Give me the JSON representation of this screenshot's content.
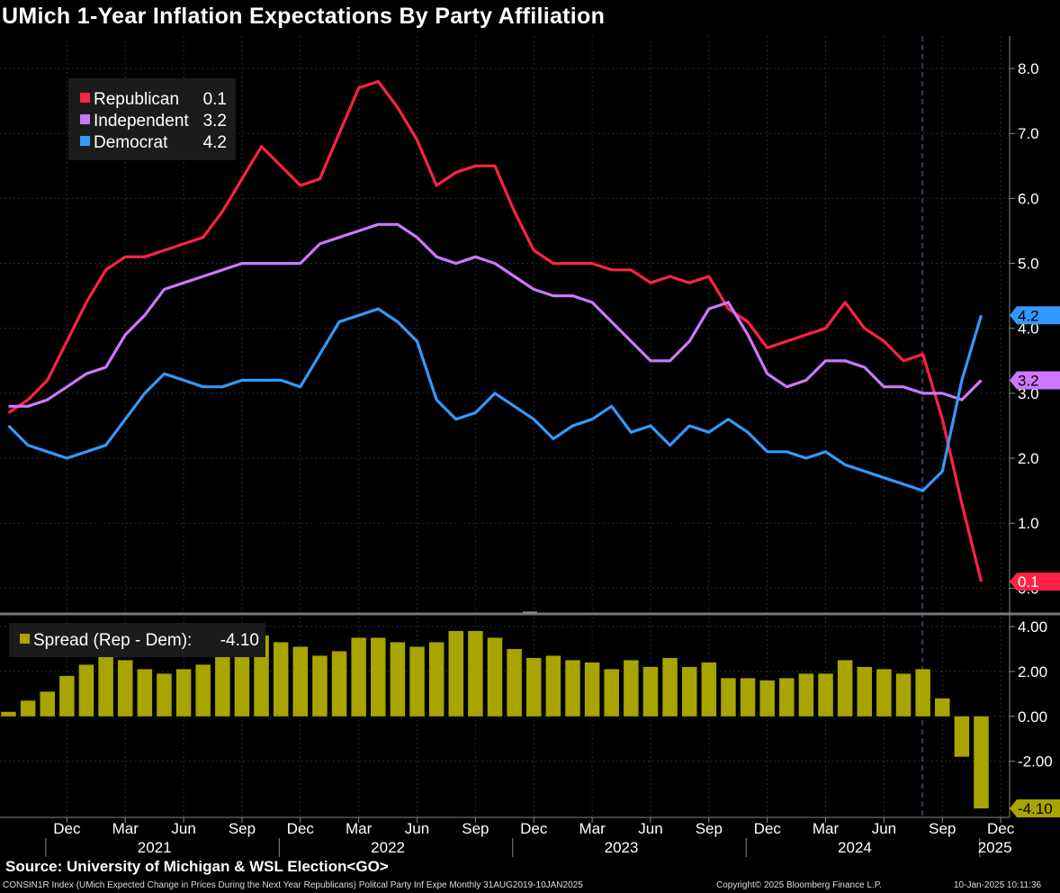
{
  "title": "UMich 1-Year Inflation Expectations By Party Affiliation",
  "source": "Source: University of Michigan & WSL Election<GO>",
  "footer": {
    "index_desc": "CONSIN1R Index (UMich Expected Change in Prices During the Next Year Republicans) Politcal Party Inf Expe  Monthly 31AUG2019-10JAN2025",
    "copyright": "Copyright© 2025 Bloomberg Finance L.P.",
    "timestamp": "10-Jan-2025 10:11:36"
  },
  "colors": {
    "republican": "#ff2244",
    "independent": "#cc77ff",
    "democrat": "#3399ff",
    "spread": "#a8a400",
    "grid": "#2a2a2a",
    "divider": "#777777"
  },
  "chart_data": [
    {
      "type": "line",
      "title": "UMich 1-Year Inflation Expectations By Party Affiliation",
      "ylim": [
        -0.3,
        8.5
      ],
      "yticks": [
        "8.0",
        "7.0",
        "6.0",
        "5.0",
        "4.0",
        "3.0",
        "2.0",
        "1.0",
        "0.0"
      ],
      "ytick_values": [
        8,
        7,
        6,
        5,
        4,
        3,
        2,
        1,
        0
      ],
      "legend": [
        {
          "name": "Republican",
          "value": "0.1"
        },
        {
          "name": "Independent",
          "value": "3.2"
        },
        {
          "name": "Democrat",
          "value": "4.2"
        }
      ],
      "series": [
        {
          "name": "Republican",
          "last_label": "0.1",
          "values": [
            2.7,
            2.9,
            3.2,
            3.8,
            4.4,
            4.9,
            5.1,
            5.1,
            5.2,
            5.3,
            5.4,
            5.8,
            6.3,
            6.8,
            6.5,
            6.2,
            6.3,
            7.0,
            7.7,
            7.8,
            7.4,
            6.9,
            6.2,
            6.4,
            6.5,
            6.5,
            5.8,
            5.2,
            5.0,
            5.0,
            5.0,
            4.9,
            4.9,
            4.7,
            4.8,
            4.7,
            4.8,
            4.3,
            4.1,
            3.7,
            3.8,
            3.9,
            4.0,
            4.4,
            4.0,
            3.8,
            3.5,
            3.6,
            2.6,
            1.3,
            0.1
          ]
        },
        {
          "name": "Independent",
          "last_label": "3.2",
          "values": [
            2.8,
            2.8,
            2.9,
            3.1,
            3.3,
            3.4,
            3.9,
            4.2,
            4.6,
            4.7,
            4.8,
            4.9,
            5.0,
            5.0,
            5.0,
            5.0,
            5.3,
            5.4,
            5.5,
            5.6,
            5.6,
            5.4,
            5.1,
            5.0,
            5.1,
            5.0,
            4.8,
            4.6,
            4.5,
            4.5,
            4.4,
            4.1,
            3.8,
            3.5,
            3.5,
            3.8,
            4.3,
            4.4,
            3.9,
            3.3,
            3.1,
            3.2,
            3.5,
            3.5,
            3.4,
            3.1,
            3.1,
            3.0,
            3.0,
            2.9,
            3.2
          ]
        },
        {
          "name": "Democrat",
          "last_label": "4.2",
          "values": [
            2.5,
            2.2,
            2.1,
            2.0,
            2.1,
            2.2,
            2.6,
            3.0,
            3.3,
            3.2,
            3.1,
            3.1,
            3.2,
            3.2,
            3.2,
            3.1,
            3.6,
            4.1,
            4.2,
            4.3,
            4.1,
            3.8,
            2.9,
            2.6,
            2.7,
            3.0,
            2.8,
            2.6,
            2.3,
            2.5,
            2.6,
            2.8,
            2.4,
            2.5,
            2.2,
            2.5,
            2.4,
            2.6,
            2.4,
            2.1,
            2.1,
            2.0,
            2.1,
            1.9,
            1.8,
            1.7,
            1.6,
            1.5,
            1.8,
            3.2,
            4.2
          ]
        }
      ]
    },
    {
      "type": "bar",
      "ylim": [
        -4.5,
        4.4
      ],
      "yticks": [
        "4.00",
        "2.00",
        "0.00",
        "-2.00"
      ],
      "ytick_values": [
        4,
        2,
        0,
        -2
      ],
      "legend": [
        {
          "name": "Spread (Rep - Dem):",
          "value": "-4.10"
        }
      ],
      "series": [
        {
          "name": "Spread (Rep - Dem)",
          "last_label": "-4.10",
          "values": [
            0.2,
            0.7,
            1.1,
            1.8,
            2.3,
            2.7,
            2.5,
            2.1,
            1.9,
            2.1,
            2.3,
            2.7,
            3.1,
            3.6,
            3.3,
            3.1,
            2.7,
            2.9,
            3.5,
            3.5,
            3.3,
            3.1,
            3.3,
            3.8,
            3.8,
            3.5,
            3.0,
            2.6,
            2.7,
            2.5,
            2.4,
            2.1,
            2.5,
            2.2,
            2.6,
            2.2,
            2.4,
            1.7,
            1.7,
            1.6,
            1.7,
            1.9,
            1.9,
            2.5,
            2.2,
            2.1,
            1.9,
            2.1,
            0.8,
            -1.8,
            -4.1
          ]
        }
      ]
    }
  ],
  "x_axis": {
    "months": [
      "Dec",
      "Mar",
      "Jun",
      "Sep",
      "Dec",
      "Mar",
      "Jun",
      "Sep",
      "Dec",
      "Mar",
      "Jun",
      "Sep",
      "Dec",
      "Mar",
      "Jun",
      "Sep",
      "Dec"
    ],
    "years": [
      "2021",
      "2022",
      "2023",
      "2024",
      "2025"
    ]
  }
}
